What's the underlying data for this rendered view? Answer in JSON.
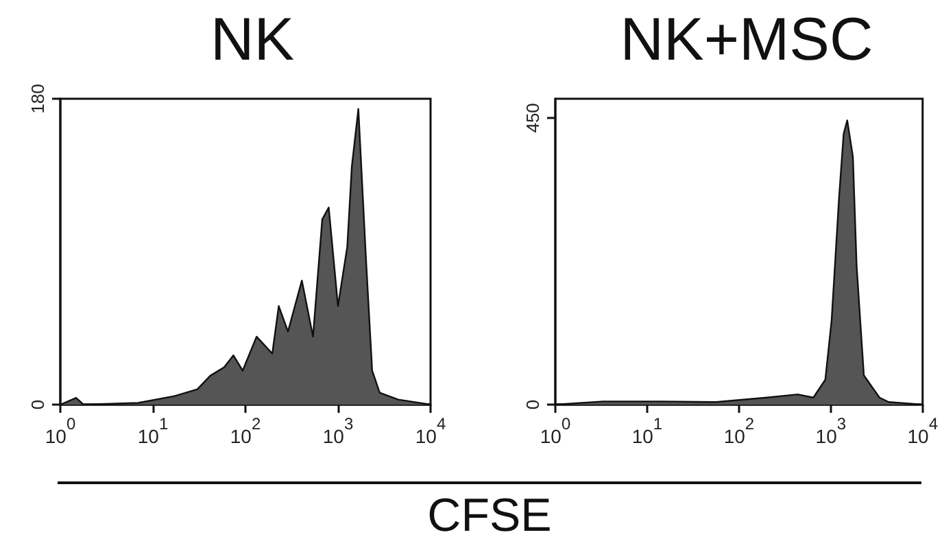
{
  "chart_data": [
    {
      "type": "area",
      "title": "NK",
      "xlabel": "CFSE",
      "log": "x",
      "xlim": [
        1,
        10000
      ],
      "ylim": [
        0,
        180
      ],
      "xticks": [
        {
          "value": 1,
          "label": "10$^{0}$"
        },
        {
          "value": 10,
          "label": "10$^{1}$"
        },
        {
          "value": 100,
          "label": "10$^{2}$"
        },
        {
          "value": 1000,
          "label": "10$^{3}$"
        },
        {
          "value": 10000,
          "label": "10$^{4}$"
        }
      ],
      "yticks": [
        0,
        180
      ],
      "grid": false,
      "marker": "none",
      "series": [
        {
          "color": "#555555",
          "x": [
            1,
            1.48,
            1.78,
            6.92,
            17.0,
            30.2,
            41.7,
            58.9,
            74.1,
            93.3,
            132,
            195,
            229,
            288,
            407,
            537,
            676,
            794,
            1000,
            1260,
            1410,
            1660,
            2000,
            2340,
            2820,
            4470,
            10000
          ],
          "values": [
            0,
            4,
            0,
            1,
            5,
            9,
            17,
            22,
            29,
            20,
            40,
            30,
            58,
            43,
            73,
            40,
            109,
            116,
            58,
            93,
            140,
            174,
            87,
            20,
            7,
            3,
            0
          ]
        }
      ]
    },
    {
      "type": "area",
      "title": "NK+MSC",
      "log": "x",
      "xlim": [
        1,
        10000
      ],
      "ylim": [
        0,
        480
      ],
      "xticks": [
        {
          "value": 1,
          "label": "10$^{0}$"
        },
        {
          "value": 10,
          "label": "10$^{1}$"
        },
        {
          "value": 100,
          "label": "10$^{2}$"
        },
        {
          "value": 1000,
          "label": "10$^{3}$"
        },
        {
          "value": 10000,
          "label": "10$^{4}$"
        }
      ],
      "yticks": [
        0,
        450
      ],
      "grid": false,
      "marker": "none",
      "series": [
        {
          "color": "#555555",
          "x": [
            1,
            3.31,
            14.5,
            56.2,
            200,
            437,
            646,
            871,
            1020,
            1230,
            1380,
            1510,
            1740,
            1910,
            2290,
            3390,
            4270,
            10000
          ],
          "values": [
            0,
            5,
            5,
            4,
            11,
            16,
            11,
            39,
            132,
            325,
            425,
            446,
            389,
            218,
            46,
            11,
            4,
            0
          ]
        }
      ]
    }
  ]
}
